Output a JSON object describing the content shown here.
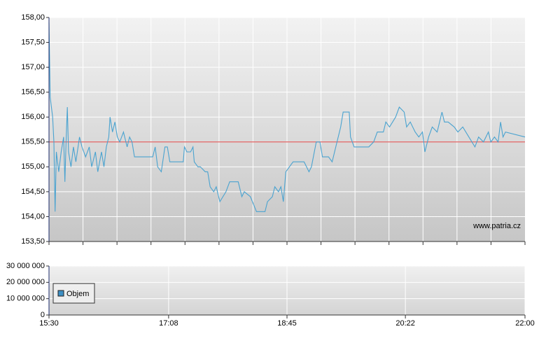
{
  "chart_data": [
    {
      "type": "line",
      "color": "#4aa3d0",
      "x": [
        "15:30",
        "15:31",
        "15:33",
        "15:34",
        "15:35",
        "15:36",
        "15:38",
        "15:40",
        "15:42",
        "15:43",
        "15:44",
        "15:45",
        "15:46",
        "15:48",
        "15:50",
        "15:52",
        "15:55",
        "15:57",
        "16:00",
        "16:03",
        "16:05",
        "16:08",
        "16:10",
        "16:13",
        "16:15",
        "16:17",
        "16:19",
        "16:20",
        "16:22",
        "16:24",
        "16:26",
        "16:28",
        "16:31",
        "16:34",
        "16:36",
        "16:38",
        "16:40",
        "16:50",
        "16:55",
        "16:57",
        "16:59",
        "17:02",
        "17:05",
        "17:07",
        "17:09",
        "17:20",
        "17:21",
        "17:23",
        "17:26",
        "17:28",
        "17:29",
        "17:32",
        "17:34",
        "17:38",
        "17:40",
        "17:42",
        "17:45",
        "17:47",
        "17:50",
        "17:55",
        "17:58",
        "18:05",
        "18:08",
        "18:10",
        "18:15",
        "18:20",
        "18:27",
        "18:29",
        "18:33",
        "18:35",
        "18:38",
        "18:40",
        "18:42",
        "18:44",
        "18:47",
        "18:50",
        "18:59",
        "19:03",
        "19:05",
        "19:09",
        "19:12",
        "19:14",
        "19:19",
        "19:22",
        "19:25",
        "19:29",
        "19:31",
        "19:36",
        "19:37",
        "19:40",
        "19:52",
        "19:56",
        "19:59",
        "20:04",
        "20:06",
        "20:09",
        "20:14",
        "20:17",
        "20:21",
        "20:23",
        "20:26",
        "20:30",
        "20:33",
        "20:36",
        "20:38",
        "20:41",
        "20:44",
        "20:48",
        "20:52",
        "20:54",
        "20:57",
        "21:02",
        "21:05",
        "21:09",
        "21:14",
        "21:19",
        "21:22",
        "21:26",
        "21:30",
        "21:32",
        "21:35",
        "21:38",
        "21:40",
        "21:42",
        "21:44",
        "22:00"
      ],
      "values": [
        157.9,
        156.4,
        156.0,
        155.5,
        154.1,
        155.3,
        154.9,
        155.3,
        155.6,
        154.7,
        155.5,
        156.2,
        155.3,
        155.0,
        155.4,
        155.1,
        155.6,
        155.4,
        155.2,
        155.4,
        155.0,
        155.3,
        154.9,
        155.3,
        155.0,
        155.4,
        155.6,
        156.0,
        155.7,
        155.9,
        155.6,
        155.5,
        155.7,
        155.4,
        155.6,
        155.5,
        155.2,
        155.2,
        155.2,
        155.4,
        155.0,
        154.9,
        155.4,
        155.4,
        155.1,
        155.1,
        155.4,
        155.3,
        155.3,
        155.4,
        155.1,
        155.0,
        155.0,
        154.9,
        154.9,
        154.6,
        154.5,
        154.6,
        154.3,
        154.5,
        154.7,
        154.7,
        154.4,
        154.5,
        154.4,
        154.1,
        154.1,
        154.3,
        154.4,
        154.6,
        154.5,
        154.6,
        154.3,
        154.9,
        155.0,
        155.1,
        155.1,
        154.9,
        155.0,
        155.5,
        155.5,
        155.2,
        155.2,
        155.1,
        155.4,
        155.8,
        156.1,
        156.1,
        155.6,
        155.4,
        155.4,
        155.5,
        155.7,
        155.7,
        155.9,
        155.8,
        156.0,
        156.2,
        156.1,
        155.8,
        155.9,
        155.7,
        155.6,
        155.7,
        155.3,
        155.6,
        155.8,
        155.7,
        156.1,
        155.9,
        155.9,
        155.8,
        155.7,
        155.8,
        155.6,
        155.4,
        155.6,
        155.5,
        155.7,
        155.5,
        155.6,
        155.5,
        155.9,
        155.6,
        155.7,
        155.6
      ],
      "xlim": [
        "15:30",
        "22:00"
      ],
      "ylim": [
        153.5,
        158
      ],
      "yticks": [
        {
          "value": 153.5,
          "label": "153,50"
        },
        {
          "value": 154,
          "label": "154,00"
        },
        {
          "value": 154.5,
          "label": "154,50"
        },
        {
          "value": 155,
          "label": "155,00"
        },
        {
          "value": 155.5,
          "label": "155,50"
        },
        {
          "value": 156,
          "label": "156,00"
        },
        {
          "value": 156.5,
          "label": "156,50"
        },
        {
          "value": 157,
          "label": "157,00"
        },
        {
          "value": 157.5,
          "label": "157,50"
        },
        {
          "value": 158,
          "label": "158,00"
        }
      ],
      "reference_line": {
        "value": 155.5,
        "color": "#e06060"
      },
      "annotation": "www.patria.cz",
      "grid": true
    },
    {
      "type": "bar",
      "series": [
        {
          "name": "Objem",
          "color": "#3d8fc4",
          "values": []
        }
      ],
      "xlim": [
        "15:30",
        "22:00"
      ],
      "xticks": [
        "15:30",
        "17:08",
        "18:45",
        "20:22",
        "22:00"
      ],
      "ylim": [
        0,
        30000000
      ],
      "yticks": [
        0,
        {
          "value": 10000000,
          "label": "10 000 000"
        },
        {
          "value": 20000000,
          "label": "20 000 000"
        },
        {
          "value": 30000000,
          "label": "30 000 000"
        }
      ],
      "legend": "bottom-left",
      "grid": true
    }
  ]
}
